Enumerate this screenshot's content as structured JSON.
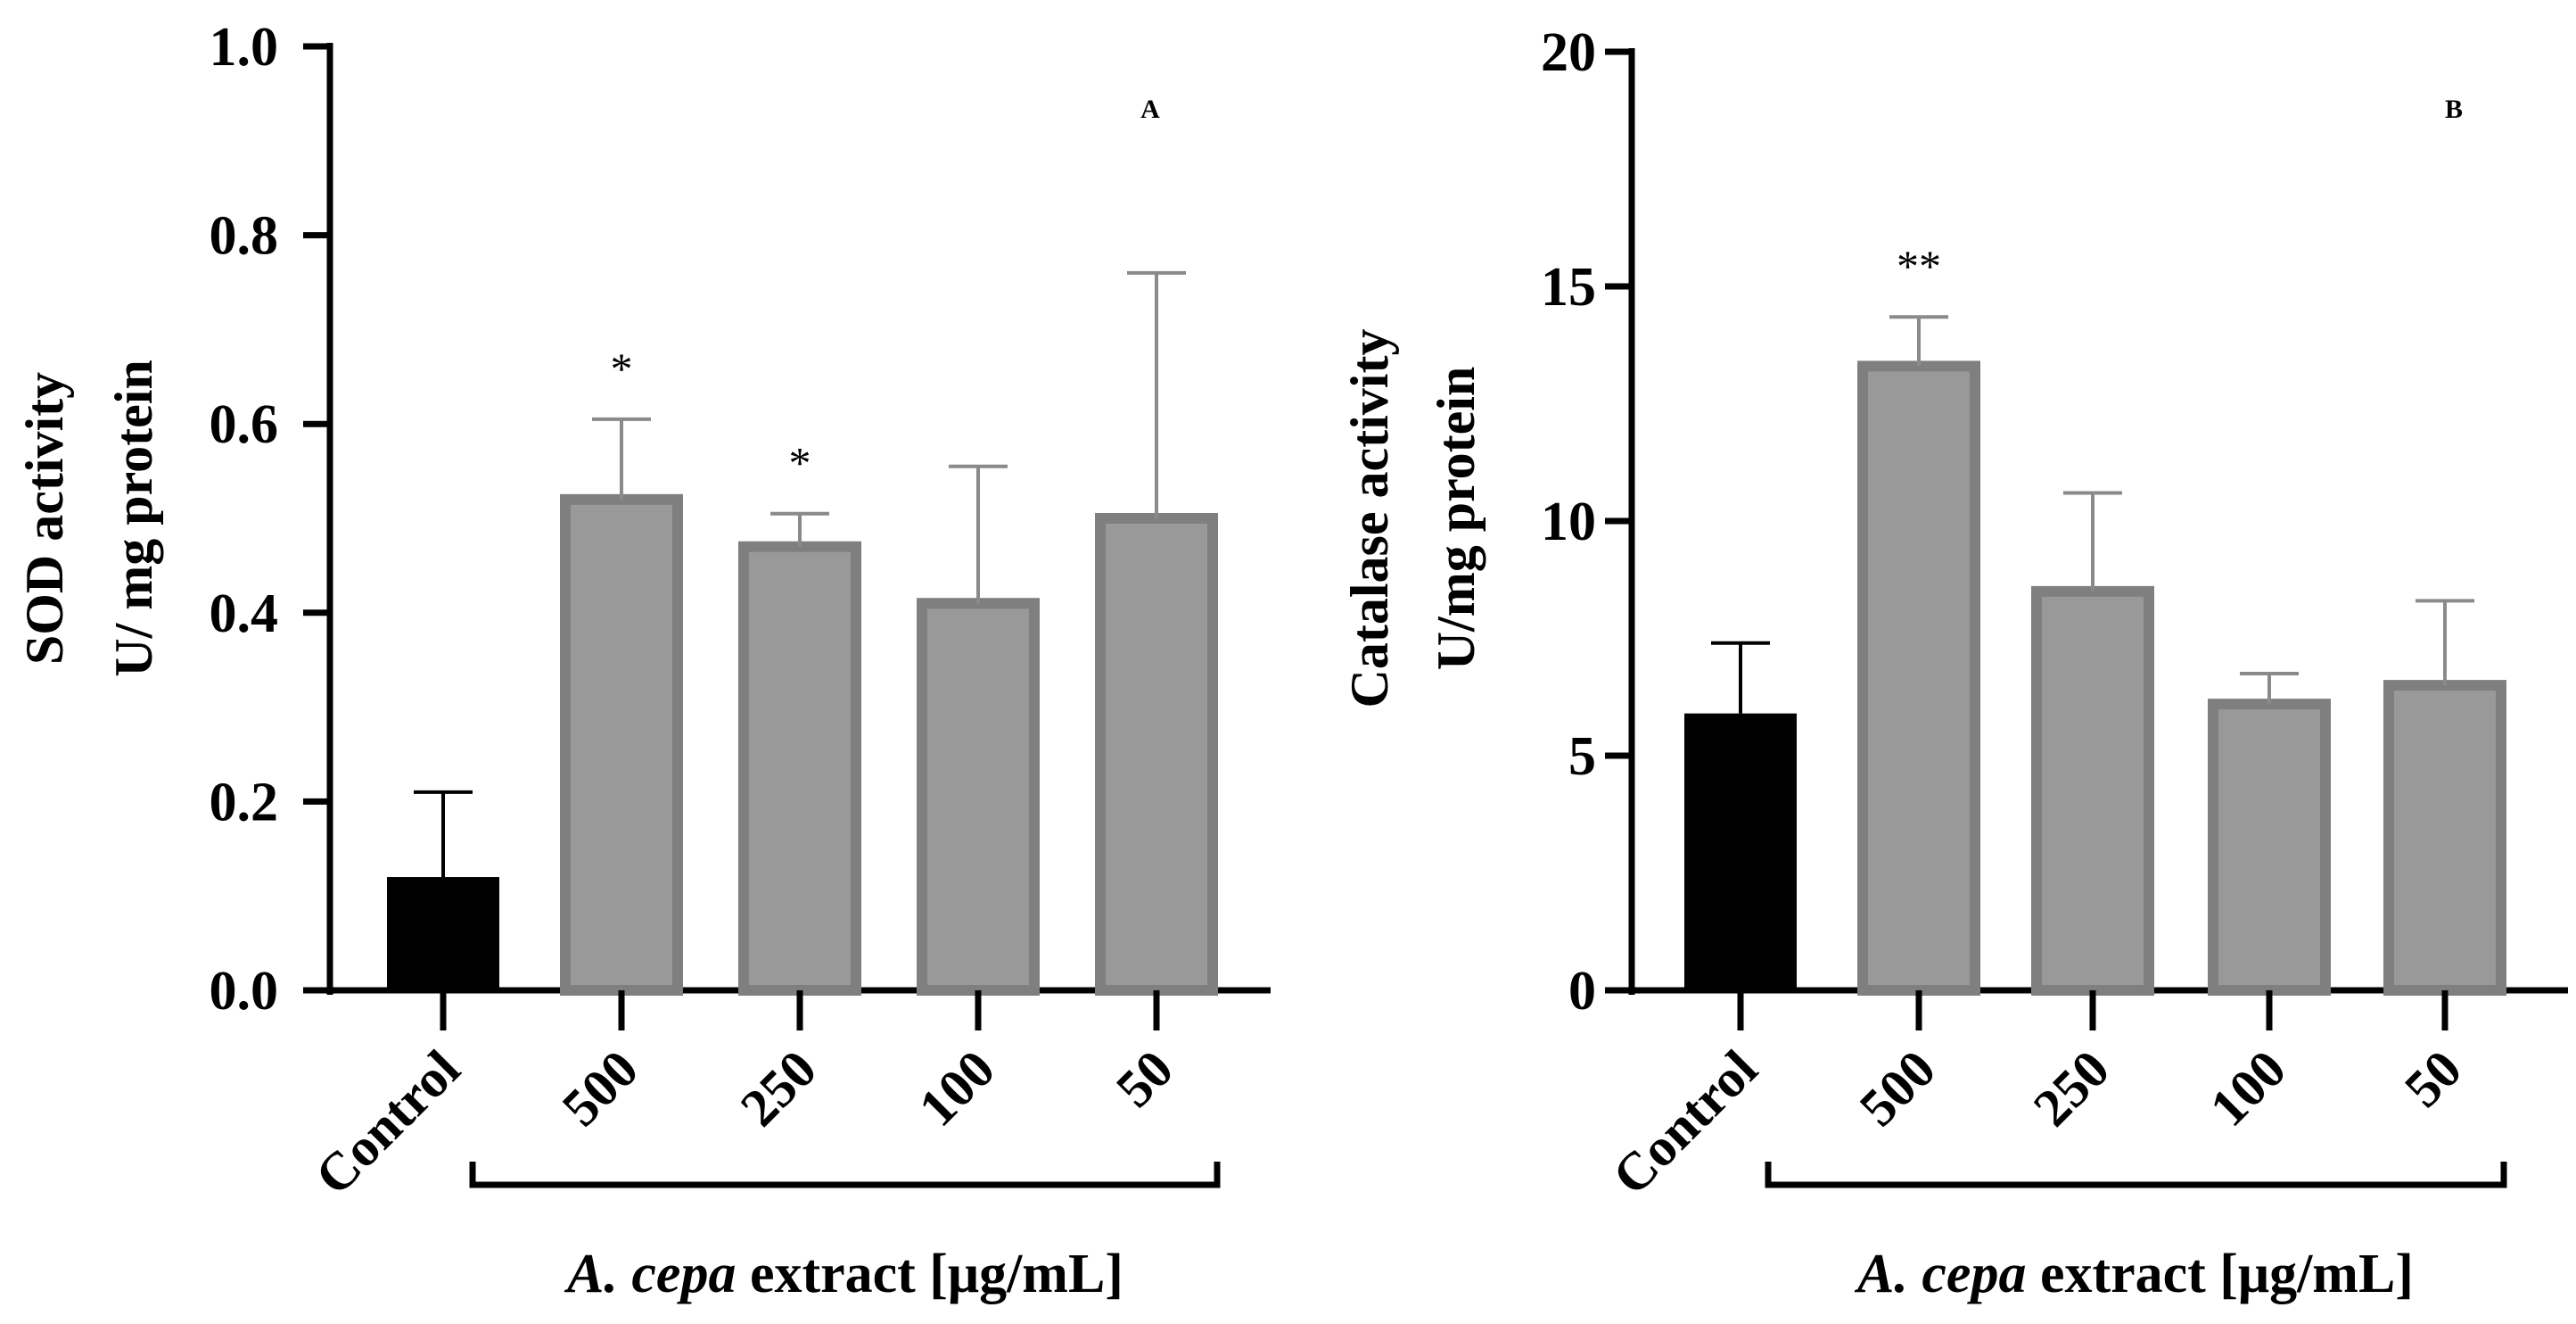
{
  "chart_data": [
    {
      "type": "bar",
      "panel_label": "A",
      "ylabel_line1": "SOD activity",
      "ylabel_line2": "U/ mg protein",
      "ylim": [
        0,
        1.0
      ],
      "yticks": [
        "0.0",
        "0.2",
        "0.4",
        "0.6",
        "0.8",
        "1.0"
      ],
      "ytick_values": [
        0,
        0.2,
        0.4,
        0.6,
        0.8,
        1.0
      ],
      "categories": [
        "Control",
        "500",
        "250",
        "100",
        "50"
      ],
      "values": [
        0.12,
        0.52,
        0.47,
        0.41,
        0.5
      ],
      "errors": [
        0.09,
        0.085,
        0.035,
        0.145,
        0.26
      ],
      "significance": [
        "",
        "*",
        "*",
        "",
        ""
      ],
      "bar_colors": [
        "#000000",
        "#999999",
        "#999999",
        "#999999",
        "#999999"
      ],
      "bracket_label_italic": "A. cepa",
      "bracket_label_rest": " extract [μg/mL]"
    },
    {
      "type": "bar",
      "panel_label": "B",
      "ylabel_line1": "Catalase activity",
      "ylabel_line2": "U/mg protein",
      "ylim": [
        0,
        20
      ],
      "yticks": [
        "0",
        "5",
        "10",
        "15",
        "20"
      ],
      "ytick_values": [
        0,
        5,
        10,
        15,
        20
      ],
      "categories": [
        "Control",
        "500",
        "250",
        "100",
        "50"
      ],
      "values": [
        5.9,
        13.3,
        8.5,
        6.1,
        6.5
      ],
      "errors": [
        1.5,
        1.05,
        2.1,
        0.65,
        1.8
      ],
      "significance": [
        "",
        "**",
        "",
        "",
        ""
      ],
      "bar_colors": [
        "#000000",
        "#999999",
        "#999999",
        "#999999",
        "#999999"
      ],
      "bracket_label_italic": "A. cepa",
      "bracket_label_rest": " extract [μg/mL]"
    }
  ]
}
